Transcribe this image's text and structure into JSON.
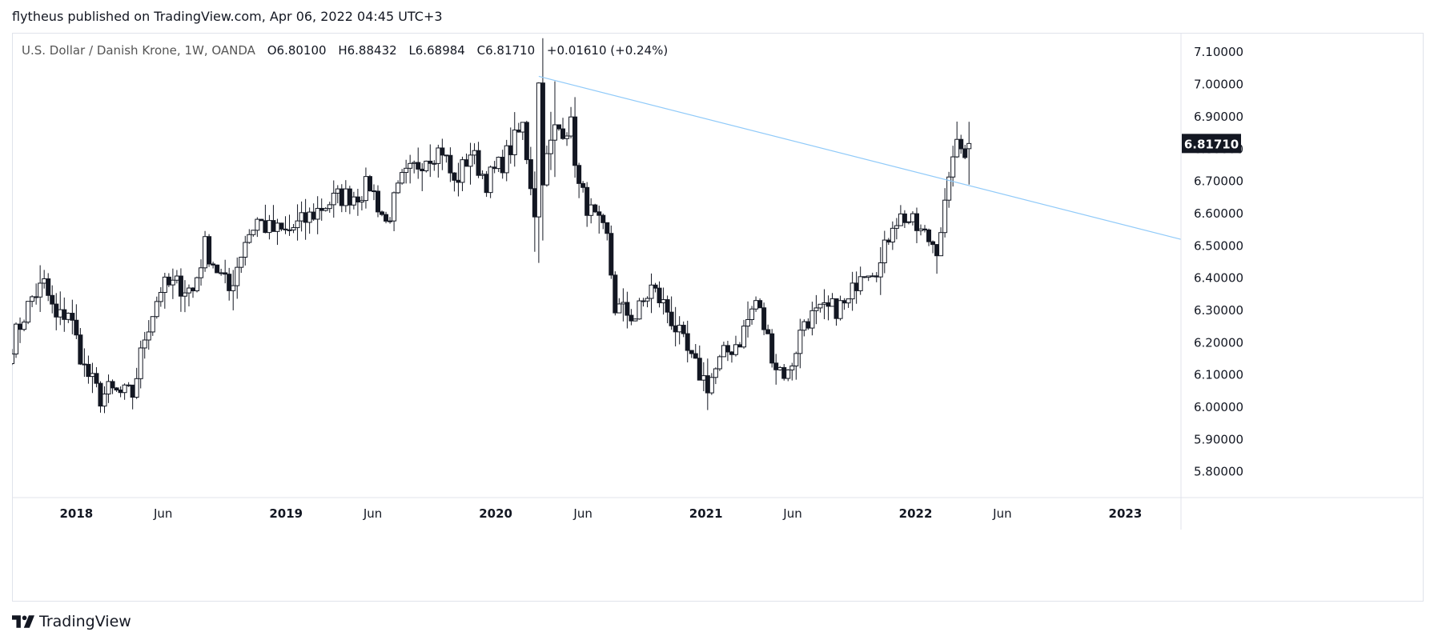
{
  "header": {
    "published_text": "flytheus published on TradingView.com, Apr 06, 2022 04:45 UTC+3"
  },
  "legend": {
    "symbol": "U.S. Dollar / Danish Krone, 1W, OANDA",
    "o_label": "O",
    "o_value": "6.80100",
    "h_label": "H",
    "h_value": "6.88432",
    "l_label": "L",
    "l_value": "6.68984",
    "c_label": "C",
    "c_value": "6.81710",
    "change": "+0.01610 (+0.24%)"
  },
  "brand": {
    "name": "TradingView",
    "logo_icon": "tradingview-logo-icon"
  },
  "colors": {
    "candle": "#131722",
    "trendline": "#90caf9",
    "price_tag_bg": "#131722",
    "price_tag_text": "#ffffff",
    "grid_border": "#e0e3eb",
    "axis_text": "#131722"
  },
  "chart_data": {
    "type": "candlestick",
    "interval": "1W",
    "symbol": "USD/DKK",
    "ylim": [
      5.72,
      7.16
    ],
    "y_ticks": [
      "7.10000",
      "7.00000",
      "6.90000",
      "6.80000",
      "6.70000",
      "6.60000",
      "6.50000",
      "6.40000",
      "6.30000",
      "6.20000",
      "6.10000",
      "6.00000",
      "5.90000",
      "5.80000"
    ],
    "y_tick_values": [
      7.1,
      7.0,
      6.9,
      6.8,
      6.7,
      6.6,
      6.5,
      6.4,
      6.3,
      6.2,
      6.1,
      6.0,
      5.9,
      5.8
    ],
    "x_range": [
      "2017-09-11",
      "2023-04-08"
    ],
    "x_ticks": [
      {
        "label": "2018",
        "date": "2018-01-01",
        "bold": true
      },
      {
        "label": "Jun",
        "date": "2018-06-01",
        "bold": false
      },
      {
        "label": "2019",
        "date": "2019-01-01",
        "bold": true
      },
      {
        "label": "Jun",
        "date": "2019-06-01",
        "bold": false
      },
      {
        "label": "2020",
        "date": "2020-01-01",
        "bold": true
      },
      {
        "label": "Jun",
        "date": "2020-06-01",
        "bold": false
      },
      {
        "label": "2021",
        "date": "2021-01-01",
        "bold": true
      },
      {
        "label": "Jun",
        "date": "2021-06-01",
        "bold": false
      },
      {
        "label": "2022",
        "date": "2022-01-01",
        "bold": true
      },
      {
        "label": "Jun",
        "date": "2022-06-01",
        "bold": false
      },
      {
        "label": "2023",
        "date": "2023-01-01",
        "bold": true
      }
    ],
    "first_week": "2017-09-11",
    "close_anchors": [
      [
        "2017-09-11",
        6.2
      ],
      [
        "2017-10-16",
        6.34
      ],
      [
        "2017-11-06",
        6.38
      ],
      [
        "2017-11-27",
        6.27
      ],
      [
        "2017-12-18",
        6.3
      ],
      [
        "2018-01-15",
        6.12
      ],
      [
        "2018-02-12",
        6.03
      ],
      [
        "2018-02-26",
        6.05
      ],
      [
        "2018-03-19",
        6.04
      ],
      [
        "2018-04-09",
        6.04
      ],
      [
        "2018-04-30",
        6.22
      ],
      [
        "2018-05-28",
        6.37
      ],
      [
        "2018-06-25",
        6.38
      ],
      [
        "2018-07-23",
        6.36
      ],
      [
        "2018-08-13",
        6.5
      ],
      [
        "2018-08-27",
        6.45
      ],
      [
        "2018-09-24",
        6.36
      ],
      [
        "2018-10-22",
        6.52
      ],
      [
        "2018-11-12",
        6.58
      ],
      [
        "2018-12-03",
        6.55
      ],
      [
        "2018-12-31",
        6.54
      ],
      [
        "2019-02-04",
        6.58
      ],
      [
        "2019-03-04",
        6.62
      ],
      [
        "2019-04-01",
        6.65
      ],
      [
        "2019-05-06",
        6.66
      ],
      [
        "2019-05-27",
        6.69
      ],
      [
        "2019-06-24",
        6.57
      ],
      [
        "2019-07-22",
        6.7
      ],
      [
        "2019-09-02",
        6.78
      ],
      [
        "2019-09-30",
        6.8
      ],
      [
        "2019-10-21",
        6.69
      ],
      [
        "2019-11-18",
        6.79
      ],
      [
        "2019-12-16",
        6.7
      ],
      [
        "2020-01-13",
        6.76
      ],
      [
        "2020-02-17",
        6.87
      ],
      [
        "2020-03-09",
        6.61
      ],
      [
        "2020-03-16",
        7.0
      ],
      [
        "2020-03-23",
        6.72
      ],
      [
        "2020-04-13",
        6.86
      ],
      [
        "2020-05-11",
        6.87
      ],
      [
        "2020-05-25",
        6.68
      ],
      [
        "2020-06-15",
        6.6
      ],
      [
        "2020-07-13",
        6.52
      ],
      [
        "2020-07-27",
        6.31
      ],
      [
        "2020-08-31",
        6.28
      ],
      [
        "2020-09-28",
        6.37
      ],
      [
        "2020-10-26",
        6.3
      ],
      [
        "2020-12-07",
        6.14
      ],
      [
        "2021-01-04",
        6.07
      ],
      [
        "2021-02-01",
        6.16
      ],
      [
        "2021-03-01",
        6.21
      ],
      [
        "2021-03-29",
        6.33
      ],
      [
        "2021-05-03",
        6.13
      ],
      [
        "2021-05-24",
        6.1
      ],
      [
        "2021-06-21",
        6.27
      ],
      [
        "2021-08-02",
        6.3
      ],
      [
        "2021-09-06",
        6.32
      ],
      [
        "2021-09-27",
        6.43
      ],
      [
        "2021-11-01",
        6.44
      ],
      [
        "2021-11-22",
        6.58
      ],
      [
        "2021-12-13",
        6.59
      ],
      [
        "2022-01-10",
        6.54
      ],
      [
        "2022-02-07",
        6.5
      ],
      [
        "2022-02-28",
        6.68
      ],
      [
        "2022-03-07",
        6.8
      ],
      [
        "2022-03-28",
        6.8
      ],
      [
        "2022-04-04",
        6.8171
      ]
    ],
    "last_candle": {
      "date": "2022-04-04",
      "open": 6.801,
      "high": 6.88432,
      "low": 6.68984,
      "close": 6.8171
    },
    "trendline": {
      "from": {
        "date": "2020-03-16",
        "value": 7.025
      },
      "to": {
        "date": "2023-04-08",
        "value": 6.52
      }
    },
    "last_price_label": "6.81710"
  }
}
